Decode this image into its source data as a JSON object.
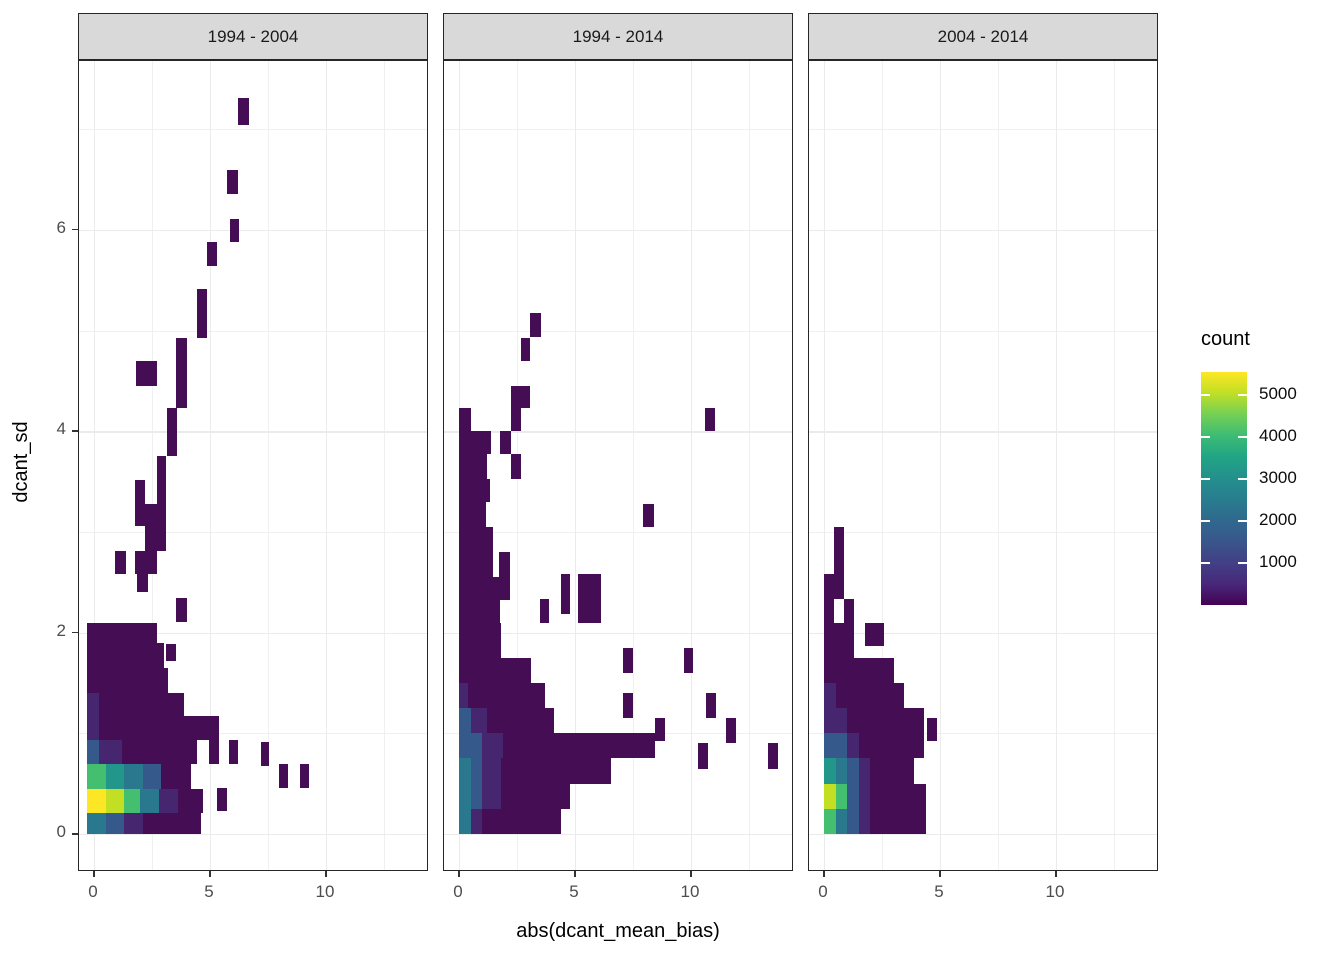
{
  "chart_data": {
    "type": "heatmap",
    "description": "Faceted 2D bin count heatmap (viridis fill) of dcant_sd vs abs(dcant_mean_bias) for three period comparisons",
    "xlabel": "abs(dcant_mean_bias)",
    "ylabel": "dcant_sd",
    "x_axis": {
      "tick_values": [
        0,
        5,
        10
      ],
      "tick_labels": [
        "0",
        "5",
        "10"
      ],
      "minor_ticks": [
        2.5,
        7.5,
        12.5
      ],
      "range": [
        -0.65,
        14.4
      ]
    },
    "y_axis": {
      "tick_values": [
        0,
        2,
        4,
        6
      ],
      "tick_labels": [
        "0",
        "2",
        "4",
        "6"
      ],
      "minor_ticks": [
        1,
        3,
        5,
        7
      ],
      "range": [
        -0.38,
        7.68
      ]
    },
    "palette": [
      "#440d54",
      "#46266f",
      "#36598c",
      "#2a788e",
      "#23968b",
      "#44bf70",
      "#c2df23",
      "#fde725"
    ],
    "palette_counts": [
      250,
      700,
      1500,
      2300,
      3100,
      3900,
      4700,
      5300
    ],
    "legend": {
      "title": "count",
      "tick_values": [
        5000,
        4000,
        3000,
        2000,
        1000
      ],
      "vmax": 5530,
      "gradient_bottom_to_top": [
        "#440154",
        "#48287a",
        "#424086",
        "#39568c",
        "#30698e",
        "#287d8e",
        "#23908d",
        "#21a585",
        "#3dbc74",
        "#74d055",
        "#c0df25",
        "#fde725"
      ]
    },
    "panels": [
      {
        "label": "1994 - 2004",
        "tiles": [
          [
            -0.3,
            0,
            0.8,
            0.21,
            3
          ],
          [
            0.5,
            0,
            0.8,
            0.21,
            2
          ],
          [
            1.3,
            0,
            0.8,
            0.21,
            1
          ],
          [
            2.1,
            0,
            2.5,
            0.21,
            0
          ],
          [
            -0.3,
            0.21,
            0.8,
            0.24,
            7
          ],
          [
            0.5,
            0.21,
            0.78,
            0.24,
            6
          ],
          [
            1.28,
            0.21,
            0.72,
            0.24,
            5
          ],
          [
            2.0,
            0.21,
            0.8,
            0.24,
            3
          ],
          [
            2.8,
            0.21,
            0.8,
            0.24,
            1
          ],
          [
            3.6,
            0.21,
            1.1,
            0.24,
            0
          ],
          [
            5.3,
            0.23,
            0.45,
            0.23,
            0
          ],
          [
            -0.3,
            0.45,
            0.8,
            0.25,
            5
          ],
          [
            0.5,
            0.45,
            0.8,
            0.25,
            4
          ],
          [
            1.3,
            0.45,
            0.8,
            0.25,
            3
          ],
          [
            2.1,
            0.45,
            0.8,
            0.25,
            2
          ],
          [
            2.9,
            0.45,
            1.3,
            0.25,
            0
          ],
          [
            7.97,
            0.46,
            0.4,
            0.24,
            0
          ],
          [
            8.86,
            0.46,
            0.42,
            0.24,
            0
          ],
          [
            -0.3,
            0.7,
            0.5,
            0.23,
            2
          ],
          [
            0.2,
            0.7,
            1.0,
            0.23,
            1
          ],
          [
            1.2,
            0.7,
            3.25,
            0.23,
            0
          ],
          [
            4.95,
            0.7,
            0.45,
            0.23,
            0
          ],
          [
            5.82,
            0.7,
            0.4,
            0.23,
            0
          ],
          [
            7.2,
            0.68,
            0.35,
            0.23,
            0
          ],
          [
            -0.3,
            0.93,
            0.5,
            0.24,
            1
          ],
          [
            0.2,
            0.93,
            5.2,
            0.24,
            0
          ],
          [
            -0.3,
            1.17,
            0.5,
            0.23,
            1
          ],
          [
            0.2,
            1.17,
            3.7,
            0.23,
            0
          ],
          [
            -0.3,
            1.4,
            3.5,
            0.25,
            0
          ],
          [
            -0.3,
            1.65,
            3.3,
            0.25,
            0
          ],
          [
            3.1,
            1.72,
            0.43,
            0.17,
            0
          ],
          [
            -0.3,
            1.9,
            3.0,
            0.2,
            0
          ],
          [
            3.53,
            2.11,
            0.47,
            0.23,
            0
          ],
          [
            1.85,
            2.4,
            0.48,
            0.23,
            0
          ],
          [
            0.9,
            2.58,
            0.48,
            0.23,
            0
          ],
          [
            1.77,
            2.58,
            0.93,
            0.23,
            0
          ],
          [
            2.2,
            2.81,
            0.9,
            0.25,
            0
          ],
          [
            1.77,
            3.06,
            1.33,
            0.22,
            0
          ],
          [
            1.77,
            3.28,
            0.43,
            0.24,
            0
          ],
          [
            2.7,
            3.28,
            0.4,
            0.47,
            0
          ],
          [
            3.15,
            3.75,
            0.43,
            0.48,
            0
          ],
          [
            3.55,
            4.23,
            0.45,
            0.7,
            0
          ],
          [
            1.8,
            4.45,
            0.9,
            0.25,
            0
          ],
          [
            4.45,
            4.93,
            0.42,
            0.48,
            0
          ],
          [
            4.87,
            5.64,
            0.43,
            0.24,
            0
          ],
          [
            5.86,
            5.88,
            0.39,
            0.23,
            0
          ],
          [
            5.73,
            6.36,
            0.47,
            0.23,
            0
          ],
          [
            6.2,
            7.04,
            0.5,
            0.27,
            0
          ]
        ]
      },
      {
        "label": "1994 - 2014",
        "tiles": [
          [
            0,
            0,
            0.5,
            0.25,
            3
          ],
          [
            0.5,
            0,
            0.5,
            0.25,
            1
          ],
          [
            1.0,
            0,
            3.4,
            0.25,
            0
          ],
          [
            0,
            0.25,
            0.5,
            0.25,
            3
          ],
          [
            0.5,
            0.25,
            0.5,
            0.25,
            2
          ],
          [
            1.0,
            0.25,
            0.8,
            0.25,
            1
          ],
          [
            1.8,
            0.25,
            3.0,
            0.25,
            0
          ],
          [
            0,
            0.5,
            0.5,
            0.25,
            3
          ],
          [
            0.5,
            0.5,
            0.5,
            0.25,
            2
          ],
          [
            1.0,
            0.5,
            0.8,
            0.25,
            1
          ],
          [
            1.8,
            0.5,
            4.75,
            0.25,
            0
          ],
          [
            0,
            0.75,
            1.0,
            0.25,
            2
          ],
          [
            1.0,
            0.75,
            0.9,
            0.25,
            1
          ],
          [
            1.9,
            0.75,
            6.55,
            0.25,
            0
          ],
          [
            0,
            1.0,
            0.5,
            0.25,
            2
          ],
          [
            0.5,
            1.0,
            0.7,
            0.25,
            1
          ],
          [
            1.2,
            1.0,
            2.9,
            0.25,
            0
          ],
          [
            8.45,
            0.92,
            0.45,
            0.23,
            0
          ],
          [
            11.5,
            0.9,
            0.45,
            0.25,
            0
          ],
          [
            10.3,
            0.65,
            0.42,
            0.25,
            0
          ],
          [
            13.3,
            0.65,
            0.45,
            0.25,
            0
          ],
          [
            0,
            1.25,
            0.4,
            0.25,
            1
          ],
          [
            0.4,
            1.25,
            3.3,
            0.25,
            0
          ],
          [
            7.08,
            1.15,
            0.4,
            0.25,
            0
          ],
          [
            10.65,
            1.15,
            0.42,
            0.25,
            0
          ],
          [
            0,
            1.5,
            3.1,
            0.25,
            0
          ],
          [
            7.08,
            1.6,
            0.4,
            0.25,
            0
          ],
          [
            9.68,
            1.6,
            0.42,
            0.25,
            0
          ],
          [
            0,
            1.75,
            1.8,
            0.35,
            0
          ],
          [
            0,
            2.1,
            1.75,
            0.22,
            0
          ],
          [
            0,
            2.32,
            2.2,
            0.23,
            0
          ],
          [
            3.5,
            2.1,
            0.4,
            0.23,
            0
          ],
          [
            4.4,
            2.18,
            0.4,
            0.4,
            0
          ],
          [
            5.12,
            2.1,
            1.0,
            0.48,
            0
          ],
          [
            0,
            2.55,
            1.45,
            0.25,
            0
          ],
          [
            1.73,
            2.55,
            0.47,
            0.25,
            0
          ],
          [
            0,
            2.8,
            1.45,
            0.25,
            0
          ],
          [
            0,
            3.05,
            1.15,
            0.25,
            0
          ],
          [
            7.93,
            3.05,
            0.47,
            0.23,
            0
          ],
          [
            0,
            3.3,
            1.35,
            0.23,
            0
          ],
          [
            0,
            3.53,
            1.2,
            0.24,
            0
          ],
          [
            2.24,
            3.53,
            0.43,
            0.24,
            0
          ],
          [
            0,
            3.77,
            1.37,
            0.23,
            0
          ],
          [
            1.77,
            3.77,
            0.47,
            0.23,
            0
          ],
          [
            0,
            4.0,
            0.5,
            0.23,
            0
          ],
          [
            2.24,
            4.0,
            0.43,
            0.23,
            0
          ],
          [
            10.6,
            4.0,
            0.45,
            0.23,
            0
          ],
          [
            2.24,
            4.23,
            0.82,
            0.22,
            0
          ],
          [
            2.67,
            4.7,
            0.39,
            0.23,
            0
          ],
          [
            3.06,
            4.94,
            0.47,
            0.23,
            0
          ]
        ]
      },
      {
        "label": "2004 - 2014",
        "tiles": [
          [
            0,
            0,
            0.5,
            0.25,
            5
          ],
          [
            0.5,
            0,
            0.5,
            0.25,
            3
          ],
          [
            1.0,
            0,
            0.5,
            0.25,
            2
          ],
          [
            1.5,
            0,
            0.5,
            0.25,
            1
          ],
          [
            2.0,
            0,
            2.4,
            0.25,
            0
          ],
          [
            0,
            0.25,
            0.5,
            0.25,
            6
          ],
          [
            0.5,
            0.25,
            0.5,
            0.25,
            5
          ],
          [
            1.0,
            0.25,
            0.5,
            0.25,
            2
          ],
          [
            1.5,
            0.25,
            0.5,
            0.25,
            1
          ],
          [
            2.0,
            0.25,
            2.4,
            0.25,
            0
          ],
          [
            0,
            0.5,
            0.5,
            0.25,
            4
          ],
          [
            0.5,
            0.5,
            0.5,
            0.25,
            3
          ],
          [
            1.0,
            0.5,
            0.5,
            0.25,
            2
          ],
          [
            1.5,
            0.5,
            0.5,
            0.25,
            1
          ],
          [
            2.0,
            0.5,
            1.9,
            0.25,
            0
          ],
          [
            0,
            0.75,
            0.5,
            0.25,
            2
          ],
          [
            0.5,
            0.75,
            0.5,
            0.25,
            2
          ],
          [
            1.0,
            0.75,
            0.5,
            0.25,
            1
          ],
          [
            1.5,
            0.75,
            2.8,
            0.25,
            0
          ],
          [
            0,
            1.0,
            1.0,
            0.25,
            1
          ],
          [
            1.0,
            1.0,
            3.3,
            0.25,
            0
          ],
          [
            4.42,
            0.92,
            0.45,
            0.23,
            0
          ],
          [
            0,
            1.25,
            0.5,
            0.25,
            1
          ],
          [
            0.5,
            1.25,
            2.95,
            0.25,
            0
          ],
          [
            0,
            1.5,
            3.0,
            0.25,
            0
          ],
          [
            0,
            1.75,
            1.3,
            0.35,
            0
          ],
          [
            1.77,
            1.87,
            0.81,
            0.23,
            0
          ],
          [
            0,
            2.1,
            0.43,
            0.23,
            0
          ],
          [
            0.86,
            2.1,
            0.44,
            0.23,
            0
          ],
          [
            0,
            2.33,
            0.86,
            0.25,
            0
          ],
          [
            0.43,
            2.58,
            0.43,
            0.47,
            0
          ]
        ]
      }
    ]
  }
}
